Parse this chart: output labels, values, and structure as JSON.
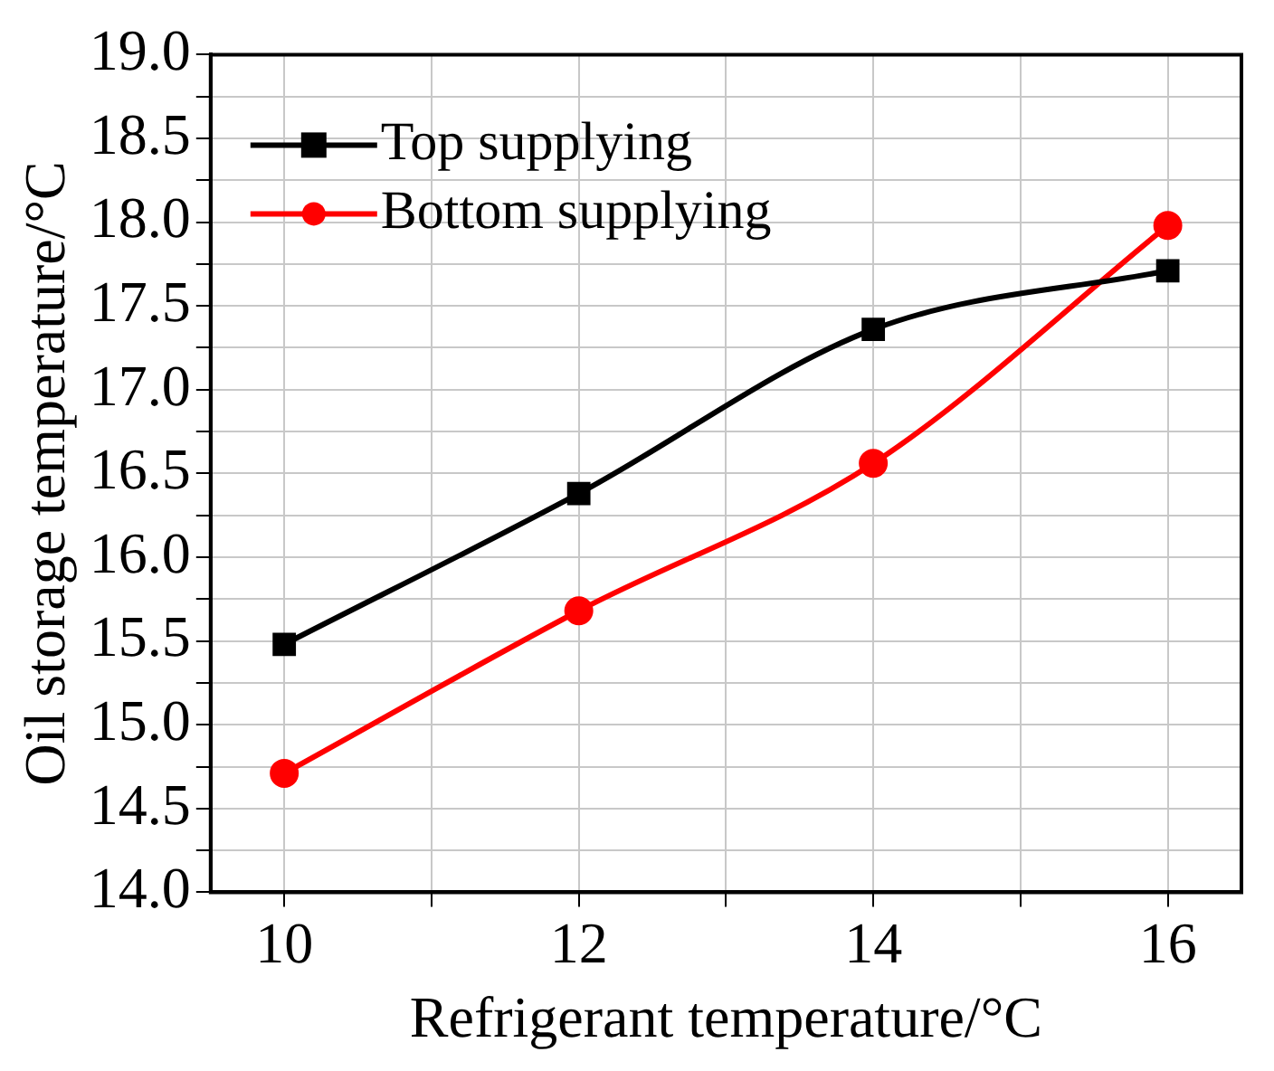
{
  "chart_data": {
    "type": "line",
    "xlabel": "Refrigerant temperature/°C",
    "ylabel": "Oil storage temperature/°C",
    "x": [
      10,
      12,
      14,
      16
    ],
    "series": [
      {
        "name": "Top supplying",
        "color": "#000000",
        "marker": "square",
        "values": [
          15.48,
          16.38,
          17.36,
          17.71
        ]
      },
      {
        "name": "Bottom supplying",
        "color": "#ff0000",
        "marker": "circle",
        "values": [
          14.71,
          15.68,
          16.56,
          17.98
        ]
      }
    ],
    "xlim": [
      9.5,
      16.5
    ],
    "xticks": [
      10,
      {
        "value": 11,
        "label": null
      },
      12,
      {
        "value": 13,
        "label": null
      },
      14,
      {
        "value": 15,
        "label": null
      },
      16
    ],
    "ylim": [
      14,
      19
    ],
    "yticks": [
      {
        "value": 14,
        "label": "14.0"
      },
      {
        "value": 14.25,
        "label": null
      },
      {
        "value": 14.5,
        "label": "14.5"
      },
      {
        "value": 14.75,
        "label": null
      },
      {
        "value": 15,
        "label": "15.0"
      },
      {
        "value": 15.25,
        "label": null
      },
      {
        "value": 15.5,
        "label": "15.5"
      },
      {
        "value": 15.75,
        "label": null
      },
      {
        "value": 16,
        "label": "16.0"
      },
      {
        "value": 16.25,
        "label": null
      },
      {
        "value": 16.5,
        "label": "16.5"
      },
      {
        "value": 16.75,
        "label": null
      },
      {
        "value": 17,
        "label": "17.0"
      },
      {
        "value": 17.25,
        "label": null
      },
      {
        "value": 17.5,
        "label": "17.5"
      },
      {
        "value": 17.75,
        "label": null
      },
      {
        "value": 18,
        "label": "18.0"
      },
      {
        "value": 18.25,
        "label": null
      },
      {
        "value": 18.5,
        "label": "18.5"
      },
      {
        "value": 18.75,
        "label": null
      },
      {
        "value": 19,
        "label": "19.0"
      }
    ],
    "grid": true,
    "legend": "top left",
    "line_style": "solid"
  }
}
